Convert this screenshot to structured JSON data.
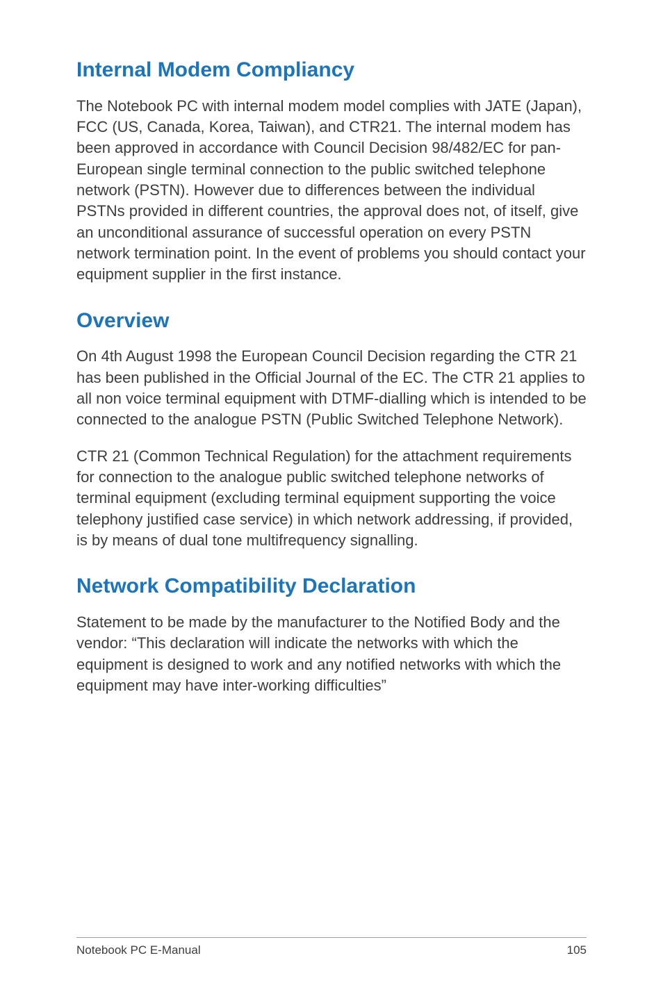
{
  "page": {
    "footer_left": "Notebook PC E-Manual",
    "footer_page_number": "105"
  },
  "sections": {
    "s1": {
      "heading": "Internal Modem Compliancy",
      "heading_color": "#1b75bc",
      "heading_fontsize": 30,
      "body_color": "#3d3d3d",
      "body_fontsize": 22,
      "para1": "The Notebook PC with internal modem model complies with JATE (Japan), FCC (US, Canada, Korea, Taiwan), and CTR21. The internal modem has been approved in accordance with Council Decision 98/482/EC for pan-European single terminal connection to the public switched telephone network (PSTN). However due to differences between the individual PSTNs provided in different countries, the approval does not, of itself, give an unconditional assurance of successful operation on every PSTN network termination point. In the event of problems you should contact your equipment supplier in the first instance."
    },
    "s2": {
      "heading": "Overview",
      "para1": "On 4th August 1998 the European Council Decision regarding the CTR 21 has been published in the Official Journal of the EC. The CTR 21 applies to all non voice terminal equipment with DTMF-dialling which is intended to be connected to the analogue PSTN (Public Switched Telephone Network).",
      "para2": "CTR 21 (Common Technical Regulation) for the attachment requirements for connection to the analogue public switched telephone networks of terminal equipment (excluding terminal equipment supporting the voice telephony justified case service) in which network addressing, if provided, is by means of dual tone multifrequency signalling."
    },
    "s3": {
      "heading": "Network Compatibility Declaration",
      "para1": "Statement to be made by the manufacturer to the Notified Body and the vendor: “This declaration will indicate the networks with which the equipment is designed to work and any notified networks with which the equipment may have inter-working difficulties”"
    }
  },
  "style": {
    "background_color": "#ffffff",
    "footer_rule_color": "#9e9e9e",
    "footer_fontsize": 17
  }
}
